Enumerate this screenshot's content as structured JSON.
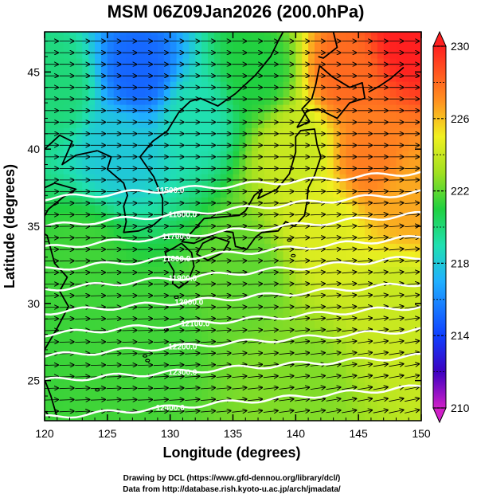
{
  "chart_data": {
    "type": "heatmap",
    "title": "MSM 06Z09Jan2026 (200.0hPa)",
    "xlabel": "Longitude (degrees)",
    "ylabel": "Latitude (degrees)",
    "xlim": [
      120,
      150
    ],
    "ylim": [
      22.4,
      47.6
    ],
    "x_ticks": [
      "120",
      "125",
      "130",
      "135",
      "140",
      "145",
      "150"
    ],
    "y_ticks": [
      "25",
      "30",
      "35",
      "40",
      "45"
    ],
    "colorbar": {
      "min": 210,
      "max": 230,
      "ticks": [
        "210",
        "214",
        "218",
        "222",
        "226",
        "230"
      ]
    },
    "field_anchors": [
      {
        "lon": 127.5,
        "lat": 45.0,
        "value": 215.0
      },
      {
        "lon": 126.0,
        "lat": 40.0,
        "value": 218.0
      },
      {
        "lon": 132.0,
        "lat": 42.0,
        "value": 219.0
      },
      {
        "lon": 121.0,
        "lat": 44.0,
        "value": 220.0
      },
      {
        "lon": 137.0,
        "lat": 45.0,
        "value": 221.0
      },
      {
        "lon": 123.0,
        "lat": 33.0,
        "value": 221.5
      },
      {
        "lon": 128.0,
        "lat": 28.0,
        "value": 221.5
      },
      {
        "lon": 136.0,
        "lat": 32.0,
        "value": 222.0
      },
      {
        "lon": 140.0,
        "lat": 25.0,
        "value": 222.5
      },
      {
        "lon": 148.0,
        "lat": 30.0,
        "value": 224.0
      },
      {
        "lon": 140.0,
        "lat": 40.0,
        "value": 224.0
      },
      {
        "lon": 142.0,
        "lat": 35.0,
        "value": 224.5
      },
      {
        "lon": 144.0,
        "lat": 45.0,
        "value": 228.0
      },
      {
        "lon": 149.0,
        "lat": 47.0,
        "value": 230.0
      },
      {
        "lon": 146.0,
        "lat": 39.5,
        "value": 227.5
      },
      {
        "lon": 149.0,
        "lat": 37.0,
        "value": 226.5
      }
    ],
    "contours": [
      {
        "label": "11500.0",
        "lat_west": 36.8,
        "lat_east": 38.5,
        "label_lon": 130.0
      },
      {
        "label": "11600.0",
        "lat_west": 35.0,
        "lat_east": 37.2,
        "label_lon": 131.0
      },
      {
        "label": "11700.0",
        "lat_west": 33.6,
        "lat_east": 35.8,
        "label_lon": 130.5
      },
      {
        "label": "11800.0",
        "lat_west": 32.2,
        "lat_east": 34.3,
        "label_lon": 130.5
      },
      {
        "label": "11900.0",
        "lat_west": 30.9,
        "lat_east": 33.0,
        "label_lon": 131.0
      },
      {
        "label": "12000.0",
        "lat_west": 29.4,
        "lat_east": 31.3,
        "label_lon": 131.5
      },
      {
        "label": "12100.0",
        "lat_west": 28.0,
        "lat_east": 29.8,
        "label_lon": 132.0
      },
      {
        "label": "12200.0",
        "lat_west": 26.6,
        "lat_east": 28.3,
        "label_lon": 131.0
      },
      {
        "label": "12300.0",
        "lat_west": 25.0,
        "lat_east": 26.6,
        "label_lon": 131.0
      },
      {
        "label": "12400.0",
        "lat_west": 22.6,
        "lat_east": 24.6,
        "label_lon": 130.0
      }
    ],
    "wind_vectors": "eastward flow across the domain, slight northward component in the south-east"
  },
  "credits": {
    "line1": "Drawing by DCL (https://www.gfd-dennou.org/library/dcl/)",
    "line2": "Data from http://database.rish.kyoto-u.ac.jp/arch/jmadata/"
  }
}
